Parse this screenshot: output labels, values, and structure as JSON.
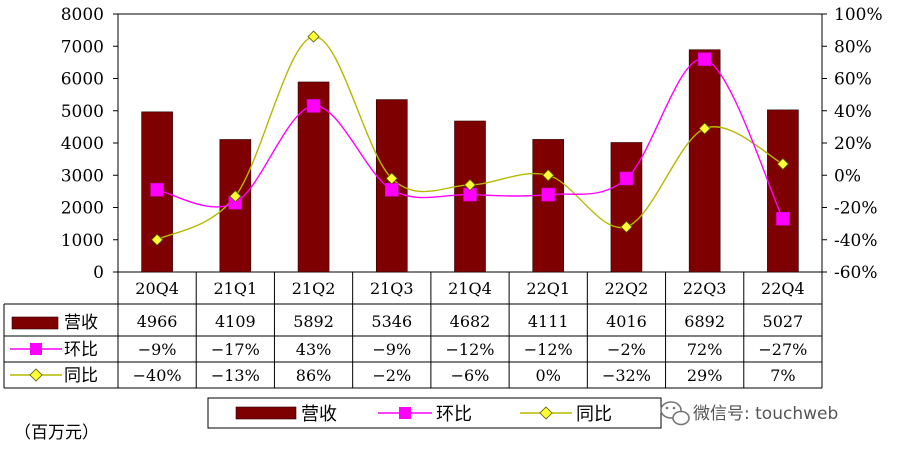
{
  "chart_data": {
    "type": "bar",
    "categories": [
      "20Q4",
      "21Q1",
      "21Q2",
      "21Q3",
      "21Q4",
      "22Q1",
      "22Q2",
      "22Q3",
      "22Q4"
    ],
    "series": [
      {
        "name": "营收",
        "type": "bar",
        "axis": "left",
        "color": "#7f0000",
        "values": [
          4966,
          4109,
          5892,
          5346,
          4682,
          4111,
          4016,
          6892,
          5027
        ],
        "labels": [
          "4966",
          "4109",
          "5892",
          "5346",
          "4682",
          "4111",
          "4016",
          "6892",
          "5027"
        ]
      },
      {
        "name": "环比",
        "type": "line",
        "axis": "right",
        "color": "#ff00ff",
        "marker": "square",
        "values": [
          -9,
          -17,
          43,
          -9,
          -12,
          -12,
          -2,
          72,
          -27
        ],
        "labels": [
          "-9%",
          "-17%",
          "43%",
          "-9%",
          "-12%",
          "-12%",
          "-2%",
          "72%",
          "-27%"
        ]
      },
      {
        "name": "同比",
        "type": "line",
        "axis": "right",
        "color": "#b5b900",
        "marker": "diamond",
        "marker_fill": "#ffff33",
        "values": [
          -40,
          -13,
          86,
          -2,
          -6,
          0,
          -32,
          29,
          7
        ],
        "labels": [
          "-40%",
          "-13%",
          "86%",
          "-2%",
          "-6%",
          "0%",
          "-32%",
          "29%",
          "7%"
        ]
      }
    ],
    "ylim": [
      0,
      8000
    ],
    "y_ticks": [
      "0",
      "1000",
      "2000",
      "3000",
      "4000",
      "5000",
      "6000",
      "7000",
      "8000"
    ],
    "y2lim": [
      -60,
      100
    ],
    "y2_ticks": [
      "-60%",
      "-40%",
      "-20%",
      "0%",
      "20%",
      "40%",
      "60%",
      "80%",
      "100%"
    ],
    "legend": [
      "营收",
      "环比",
      "同比"
    ],
    "legend_position": "bottom",
    "unit_label": "（百万元）",
    "grid": false,
    "data_table": true
  },
  "watermark": {
    "text": "微信号: touchweb",
    "icon": "wechat-icon"
  }
}
